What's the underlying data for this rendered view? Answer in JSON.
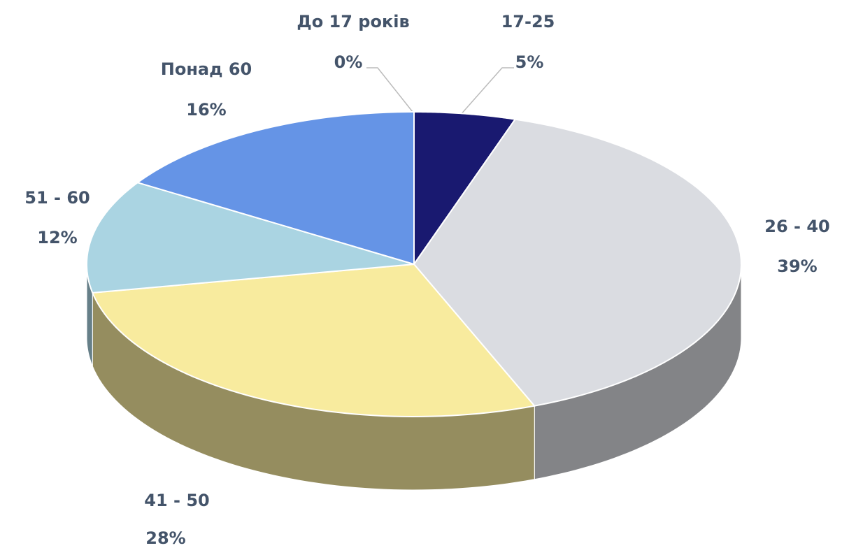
{
  "chart_data": {
    "type": "pie",
    "categories": [
      "До 17 років",
      "17-25",
      "26 - 40",
      "41 - 50",
      "51 - 60",
      "Понад 60"
    ],
    "values": [
      0,
      5,
      39,
      28,
      12,
      16
    ],
    "value_labels": [
      "0%",
      "5%",
      "39%",
      "28%",
      "12%",
      "16%"
    ],
    "colors": [
      "#4472c4",
      "#191970",
      "#dadce1",
      "#f8eb9e",
      "#aad4e2",
      "#6594e6"
    ]
  }
}
